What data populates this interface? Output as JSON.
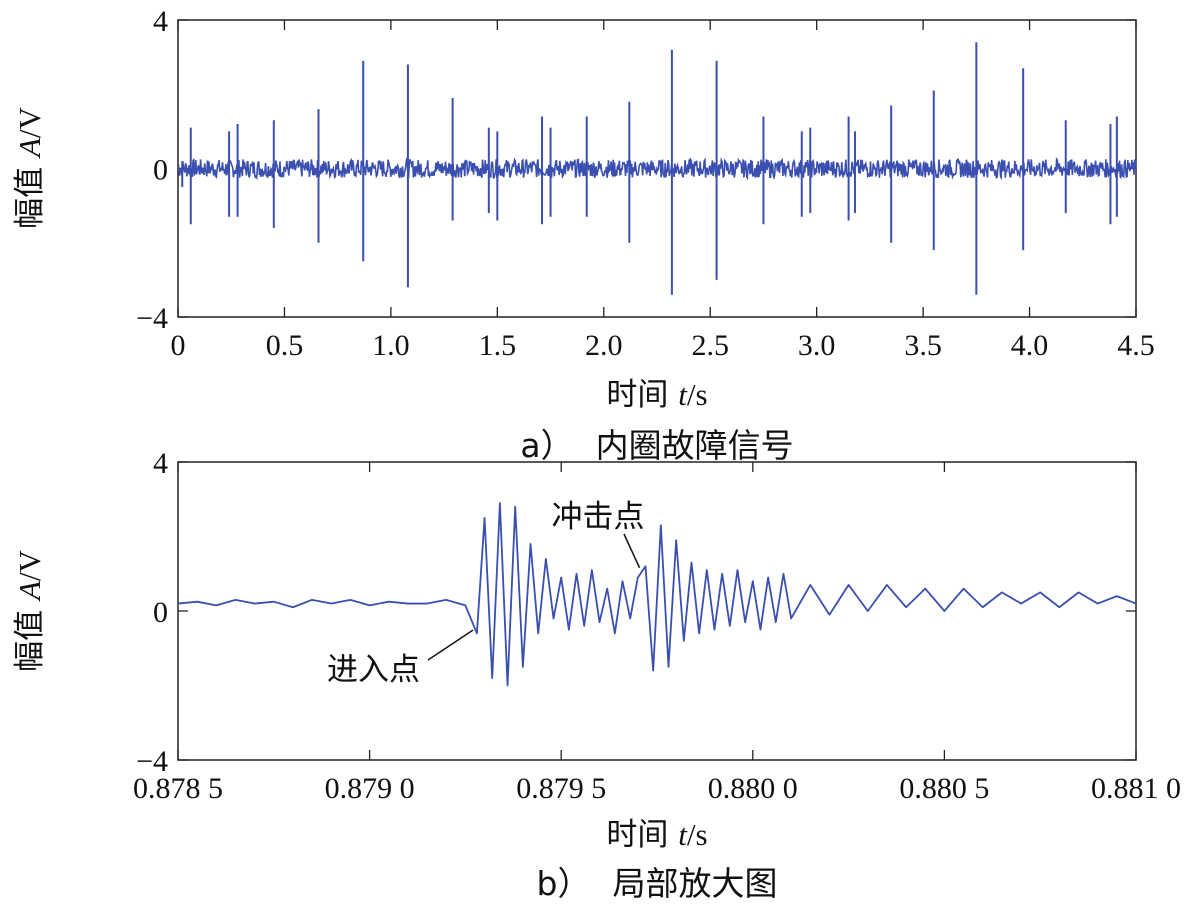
{
  "chart_data": [
    {
      "type": "line",
      "caption_label": "a）",
      "caption_title": "内圈故障信号",
      "xlabel_text": "时间 ",
      "xlabel_var": "t",
      "xlabel_unit": "/s",
      "ylabel_text": "幅值 ",
      "ylabel_var": "A",
      "ylabel_unit": "/V",
      "xlim": [
        0,
        4.5
      ],
      "ylim": [
        -4,
        4
      ],
      "xticks": [
        0,
        0.5,
        1.0,
        1.5,
        2.0,
        2.5,
        3.0,
        3.5,
        4.0,
        4.5
      ],
      "xtick_labels": [
        "0",
        "0.5",
        "1.0",
        "1.5",
        "2.0",
        "2.5",
        "3.0",
        "3.5",
        "4.0",
        "4.5"
      ],
      "yticks": [
        -4,
        0,
        4
      ],
      "ytick_labels": [
        "−4",
        "0",
        "4"
      ],
      "color": "#3a4fb0",
      "series": [
        {
          "noise_band": 0.25,
          "impulses": [
            {
              "t": 0.02,
              "pos": 0.2,
              "neg": -0.5
            },
            {
              "t": 0.06,
              "pos": 1.1,
              "neg": -1.5
            },
            {
              "t": 0.24,
              "pos": 1.0,
              "neg": -1.3
            },
            {
              "t": 0.28,
              "pos": 1.2,
              "neg": -1.3
            },
            {
              "t": 0.45,
              "pos": 1.3,
              "neg": -1.6
            },
            {
              "t": 0.66,
              "pos": 1.6,
              "neg": -2.0
            },
            {
              "t": 0.87,
              "pos": 2.9,
              "neg": -2.5
            },
            {
              "t": 1.08,
              "pos": 2.8,
              "neg": -3.2
            },
            {
              "t": 1.29,
              "pos": 1.9,
              "neg": -1.4
            },
            {
              "t": 1.46,
              "pos": 1.1,
              "neg": -1.2
            },
            {
              "t": 1.5,
              "pos": 1.0,
              "neg": -1.4
            },
            {
              "t": 1.71,
              "pos": 1.4,
              "neg": -1.5
            },
            {
              "t": 1.75,
              "pos": 1.1,
              "neg": -1.3
            },
            {
              "t": 1.92,
              "pos": 1.4,
              "neg": -1.3
            },
            {
              "t": 2.12,
              "pos": 1.8,
              "neg": -2.0
            },
            {
              "t": 2.32,
              "pos": 3.2,
              "neg": -3.4
            },
            {
              "t": 2.53,
              "pos": 2.9,
              "neg": -3.0
            },
            {
              "t": 2.75,
              "pos": 1.4,
              "neg": -1.5
            },
            {
              "t": 2.93,
              "pos": 1.0,
              "neg": -1.3
            },
            {
              "t": 2.97,
              "pos": 1.1,
              "neg": -1.2
            },
            {
              "t": 3.15,
              "pos": 1.4,
              "neg": -1.4
            },
            {
              "t": 3.18,
              "pos": 1.0,
              "neg": -1.2
            },
            {
              "t": 3.35,
              "pos": 1.7,
              "neg": -2.0
            },
            {
              "t": 3.55,
              "pos": 2.1,
              "neg": -2.2
            },
            {
              "t": 3.75,
              "pos": 3.4,
              "neg": -3.4
            },
            {
              "t": 3.97,
              "pos": 2.7,
              "neg": -2.2
            },
            {
              "t": 4.17,
              "pos": 1.3,
              "neg": -1.2
            },
            {
              "t": 4.38,
              "pos": 1.2,
              "neg": -1.5
            },
            {
              "t": 4.41,
              "pos": 1.4,
              "neg": -1.3
            }
          ]
        }
      ]
    },
    {
      "type": "line",
      "caption_label": "b）",
      "caption_title": "局部放大图",
      "xlabel_text": "时间 ",
      "xlabel_var": "t",
      "xlabel_unit": "/s",
      "ylabel_text": "幅值 ",
      "ylabel_var": "A",
      "ylabel_unit": "/V",
      "xlim": [
        0.8785,
        0.881
      ],
      "ylim": [
        -4,
        4
      ],
      "xticks": [
        0.8785,
        0.879,
        0.8795,
        0.88,
        0.8805,
        0.881
      ],
      "xtick_labels": [
        "0.878 5",
        "0.879 0",
        "0.879 5",
        "0.880 0",
        "0.880 5",
        "0.881 0"
      ],
      "yticks": [
        -4,
        0,
        4
      ],
      "ytick_labels": [
        "−4",
        "0",
        "4"
      ],
      "color": "#3a4fb0",
      "annotations": [
        {
          "text": "进入点",
          "t": 0.87928,
          "y": -0.3
        },
        {
          "text": "冲击点",
          "t": 0.87972,
          "y": 1.0
        }
      ],
      "series": [
        {
          "baseline": 0.2,
          "entry_t": 0.87928,
          "impact_t": 0.87972,
          "x": [
            0.8785,
            0.87855,
            0.8786,
            0.87865,
            0.8787,
            0.87875,
            0.8788,
            0.87885,
            0.8789,
            0.87895,
            0.879,
            0.87905,
            0.8791,
            0.87915,
            0.8792,
            0.87925,
            0.87928,
            0.8793,
            0.87932,
            0.87934,
            0.87936,
            0.87938,
            0.8794,
            0.87942,
            0.87944,
            0.87946,
            0.87948,
            0.8795,
            0.87952,
            0.87954,
            0.87956,
            0.87958,
            0.8796,
            0.87962,
            0.87964,
            0.87966,
            0.87968,
            0.8797,
            0.87972,
            0.87974,
            0.87976,
            0.87978,
            0.8798,
            0.87982,
            0.87984,
            0.87986,
            0.87988,
            0.8799,
            0.87992,
            0.87994,
            0.87996,
            0.87998,
            0.88,
            0.88002,
            0.88004,
            0.88006,
            0.88008,
            0.8801,
            0.88015,
            0.8802,
            0.88025,
            0.8803,
            0.88035,
            0.8804,
            0.88045,
            0.8805,
            0.88055,
            0.8806,
            0.88065,
            0.8807,
            0.88075,
            0.8808,
            0.88085,
            0.8809,
            0.88095,
            0.881
          ],
          "y": [
            0.2,
            0.25,
            0.15,
            0.3,
            0.2,
            0.25,
            0.1,
            0.3,
            0.2,
            0.3,
            0.15,
            0.25,
            0.2,
            0.2,
            0.3,
            0.15,
            -0.6,
            2.5,
            -1.8,
            2.9,
            -2.0,
            2.8,
            -1.5,
            1.8,
            -0.6,
            1.4,
            -0.2,
            0.9,
            -0.5,
            1.0,
            -0.4,
            1.1,
            -0.3,
            0.6,
            -0.6,
            0.8,
            -0.2,
            0.9,
            1.2,
            -1.6,
            2.3,
            -1.5,
            1.9,
            -0.8,
            1.3,
            -0.6,
            1.1,
            -0.5,
            1.0,
            -0.4,
            1.1,
            -0.3,
            0.8,
            -0.5,
            0.9,
            -0.3,
            1.0,
            -0.2,
            0.7,
            -0.1,
            0.7,
            0.0,
            0.7,
            0.1,
            0.6,
            0.0,
            0.6,
            0.1,
            0.5,
            0.2,
            0.5,
            0.1,
            0.5,
            0.2,
            0.4,
            0.2
          ]
        }
      ]
    }
  ]
}
